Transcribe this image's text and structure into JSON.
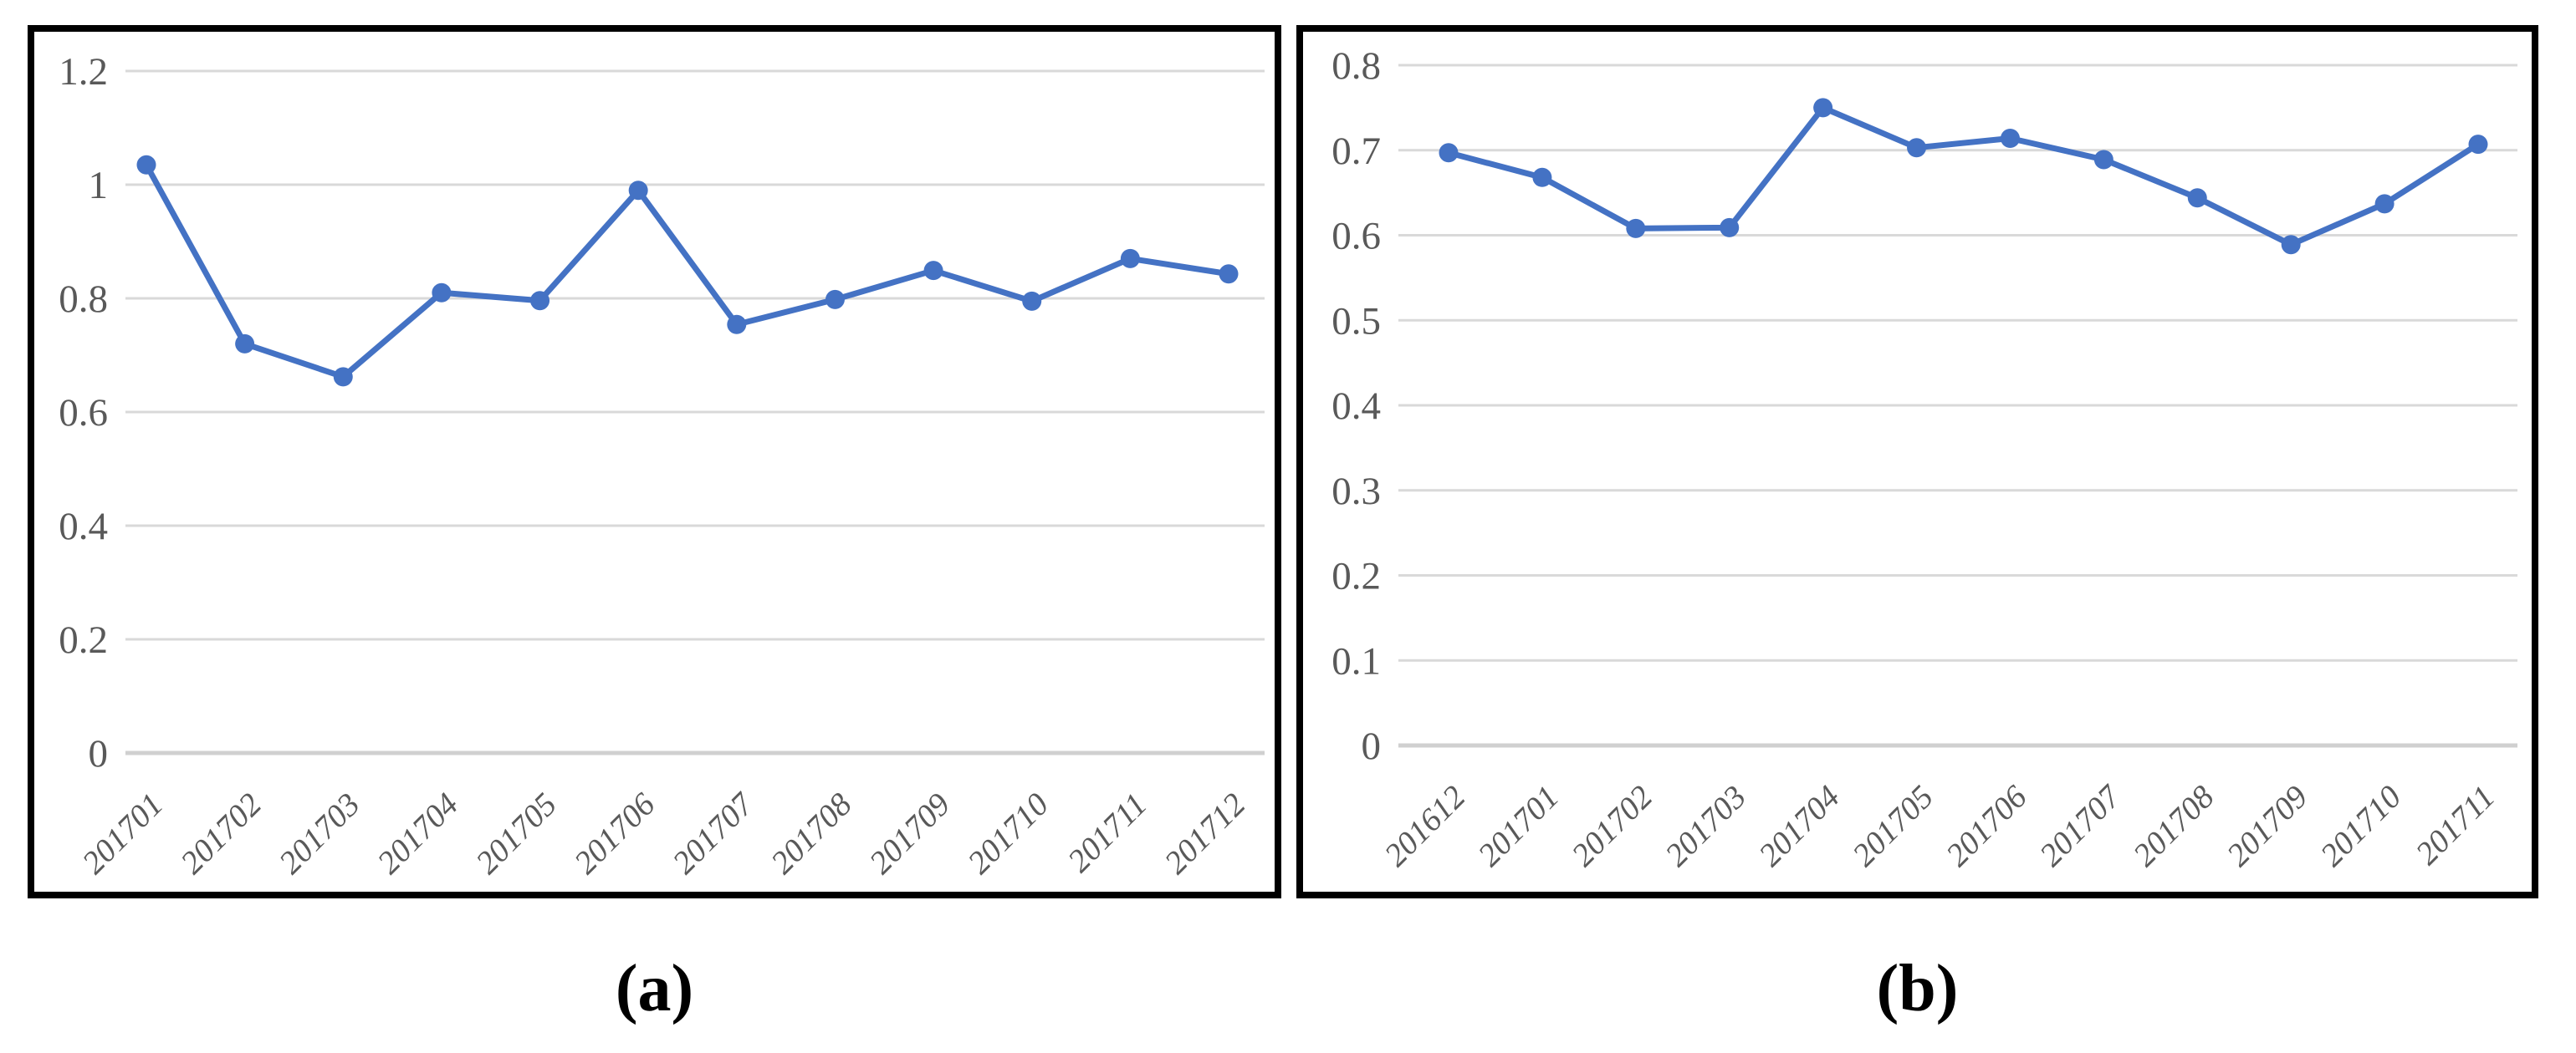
{
  "page": {
    "background": "#ffffff",
    "description": "Two-panel line chart figure with monthly index values"
  },
  "colors": {
    "line": "#4472C4",
    "marker": "#4472C4",
    "gridline": "#D9D9D9",
    "baseline": "#D0D0D0",
    "axis_text": "#595959",
    "frame": "#000000",
    "caption_text": "#000000"
  },
  "chart_data": [
    {
      "panel": "a",
      "caption": "(a)",
      "type": "line",
      "title": "",
      "xlabel": "",
      "ylabel": "",
      "grid": true,
      "legend_position": "none",
      "ylim": [
        0,
        1.2
      ],
      "ytick_step": 0.2,
      "yticks": [
        "1.2",
        "1",
        "0.8",
        "0.6",
        "0.4",
        "0.2",
        "0"
      ],
      "categories": [
        "201701",
        "201702",
        "201703",
        "201704",
        "201705",
        "201706",
        "201707",
        "201708",
        "201709",
        "201710",
        "201711",
        "201712"
      ],
      "values": [
        1.035,
        0.72,
        0.662,
        0.81,
        0.796,
        0.99,
        0.754,
        0.798,
        0.849,
        0.795,
        0.87,
        0.843
      ]
    },
    {
      "panel": "b",
      "caption": "(b)",
      "type": "line",
      "title": "",
      "xlabel": "",
      "ylabel": "",
      "grid": true,
      "legend_position": "none",
      "ylim": [
        0,
        0.8
      ],
      "ytick_step": 0.1,
      "yticks": [
        "0.8",
        "0.7",
        "0.6",
        "0.5",
        "0.4",
        "0.3",
        "0.2",
        "0.1",
        "0"
      ],
      "categories": [
        "201612",
        "201701",
        "201702",
        "201703",
        "201704",
        "201705",
        "201706",
        "201707",
        "201708",
        "201709",
        "201710",
        "201711"
      ],
      "values": [
        0.697,
        0.668,
        0.608,
        0.609,
        0.75,
        0.703,
        0.714,
        0.689,
        0.644,
        0.589,
        0.637,
        0.707
      ]
    }
  ]
}
